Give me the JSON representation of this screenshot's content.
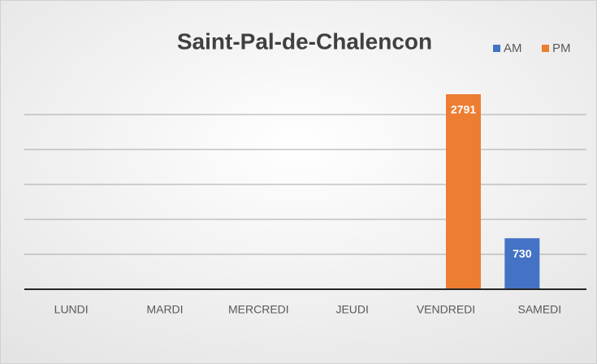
{
  "chart_data": {
    "type": "bar",
    "title": "Saint-Pal-de-Chalencon",
    "categories": [
      "LUNDI",
      "MARDI",
      "MERCREDI",
      "JEUDI",
      "VENDREDI",
      "SAMEDI"
    ],
    "series": [
      {
        "name": "AM",
        "color": "#4472c4",
        "values": [
          null,
          null,
          null,
          null,
          null,
          730
        ]
      },
      {
        "name": "PM",
        "color": "#ed7d31",
        "values": [
          null,
          null,
          null,
          null,
          2791,
          null
        ]
      }
    ],
    "ylim": [
      0,
      3000
    ],
    "yticks": [
      0,
      500,
      1000,
      1500,
      2000,
      2500
    ],
    "grid": true,
    "legend": "top-right"
  }
}
